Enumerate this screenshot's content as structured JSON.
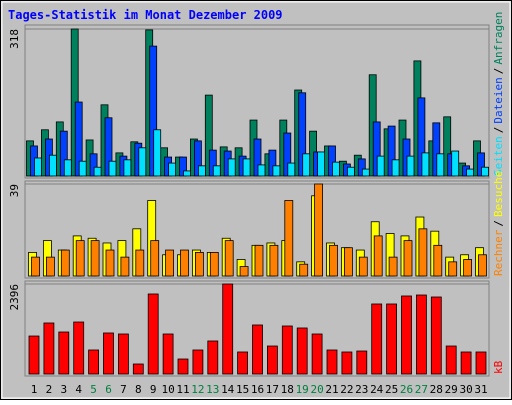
{
  "title": "Tages-Statistik im Monat Dezember 2009",
  "separator": "/",
  "chart_data": [
    {
      "type": "bar",
      "ylim": [
        0,
        318
      ],
      "yticks": [
        318
      ],
      "series": [
        {
          "name": "Anfragen",
          "color": "#00805c",
          "values": [
            76,
            100,
            117,
            318,
            78,
            154,
            50,
            74,
            316,
            61,
            41,
            80,
            175,
            63,
            61,
            121,
            48,
            121,
            186,
            97,
            65,
            32,
            45,
            219,
            102,
            121,
            249,
            76,
            128,
            28,
            76
          ]
        },
        {
          "name": "Dateien",
          "color": "#0040ff",
          "values": [
            65,
            80,
            97,
            160,
            48,
            126,
            43,
            71,
            281,
            41,
            41,
            76,
            56,
            54,
            43,
            80,
            56,
            93,
            180,
            52,
            65,
            26,
            37,
            117,
            108,
            80,
            169,
            115,
            48,
            22,
            50
          ]
        },
        {
          "name": "Seiten",
          "color": "#00e0ff",
          "values": [
            39,
            45,
            35,
            32,
            19,
            32,
            35,
            61,
            100,
            28,
            11,
            22,
            22,
            37,
            37,
            24,
            22,
            28,
            48,
            52,
            30,
            19,
            15,
            43,
            35,
            43,
            50,
            48,
            54,
            15,
            19
          ]
        }
      ]
    },
    {
      "type": "bar",
      "ylim": [
        0,
        39
      ],
      "yticks": [
        39
      ],
      "series": [
        {
          "name": "Besuche",
          "color": "#ffff00",
          "values": [
            10,
            15,
            11,
            17,
            16,
            14,
            15,
            20,
            32,
            9,
            9,
            11,
            10,
            16,
            7,
            13,
            14,
            15,
            6,
            34,
            14,
            12,
            11,
            23,
            18,
            17,
            25,
            19,
            8,
            9,
            12
          ]
        },
        {
          "name": "Rechner",
          "color": "#ff8000",
          "values": [
            8,
            8,
            11,
            15,
            15,
            11,
            8,
            11,
            15,
            11,
            11,
            10,
            10,
            15,
            4,
            13,
            13,
            32,
            5,
            39,
            13,
            12,
            8,
            17,
            8,
            15,
            20,
            13,
            6,
            7,
            9
          ]
        }
      ]
    },
    {
      "type": "bar",
      "ylim": [
        0,
        2396
      ],
      "yticks": [
        2396
      ],
      "categories": [
        "1",
        "2",
        "3",
        "4",
        "5",
        "6",
        "7",
        "8",
        "9",
        "10",
        "11",
        "12",
        "13",
        "14",
        "15",
        "16",
        "17",
        "18",
        "19",
        "20",
        "21",
        "22",
        "23",
        "24",
        "25",
        "26",
        "27",
        "28",
        "29",
        "30",
        "31"
      ],
      "highlight_indices": [
        4,
        5,
        11,
        12,
        18,
        19,
        25,
        26
      ],
      "highlight_color": "#008040",
      "series": [
        {
          "name": "kB",
          "color": "#ff0000",
          "values": [
            1011,
            1358,
            1118,
            1384,
            639,
            1092,
            1065,
            266,
            2130,
            1065,
            399,
            639,
            879,
            2396,
            586,
            1305,
            745,
            1278,
            1225,
            1065,
            639,
            586,
            612,
            1864,
            1864,
            2077,
            2103,
            2050,
            745,
            586,
            586
          ]
        }
      ]
    }
  ]
}
